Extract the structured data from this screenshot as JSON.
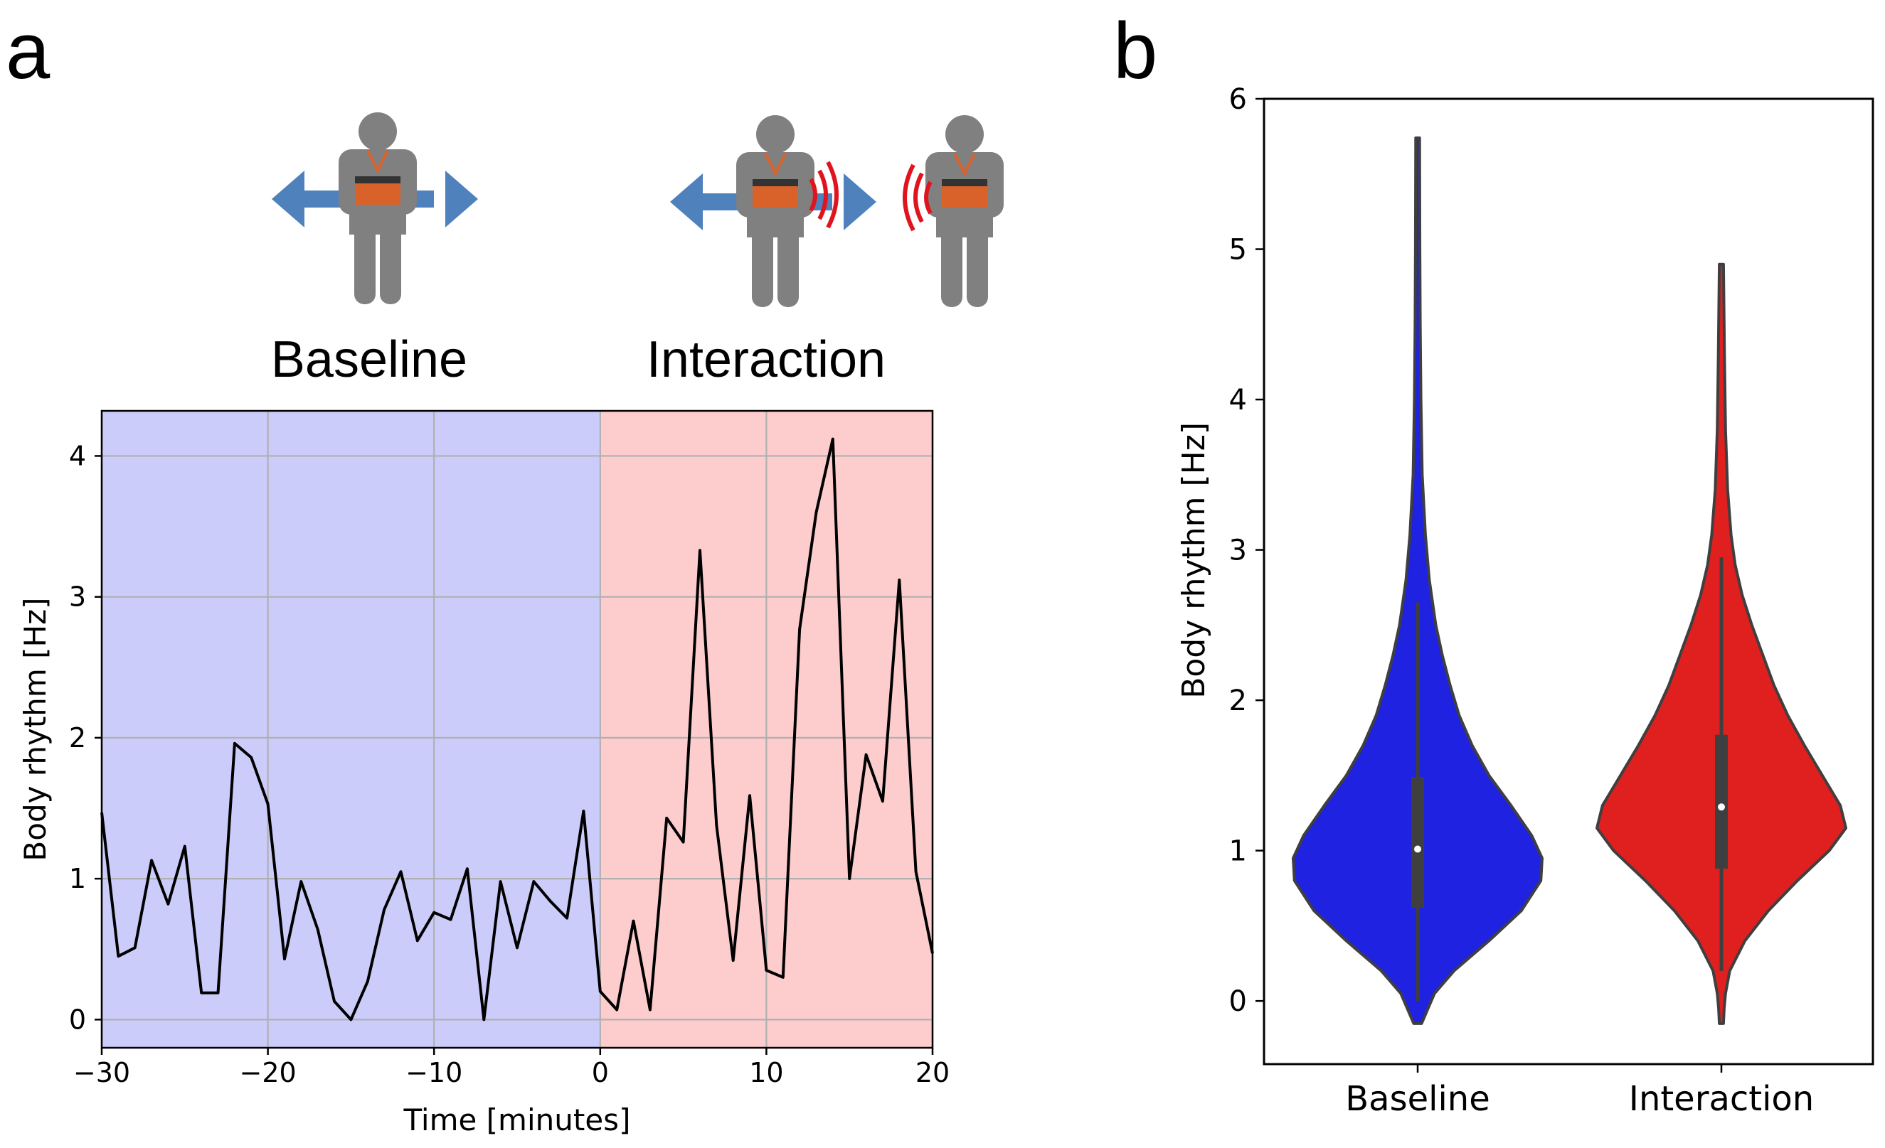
{
  "panels": {
    "a": {
      "letter": "a"
    },
    "b": {
      "letter": "b"
    }
  },
  "illustration": {
    "baseline_label": "Baseline",
    "interaction_label": "Interaction",
    "colors": {
      "person": "#808080",
      "arrow": "#4f81bd",
      "device": "#d9622b",
      "signal": "#e0141e"
    }
  },
  "chart_data": [
    {
      "id": "timeseries",
      "type": "line",
      "title": "",
      "xlabel": "Time [minutes]",
      "ylabel": "Body rhythm [Hz]",
      "xlim": [
        -30,
        20
      ],
      "ylim": [
        -0.2,
        4.32
      ],
      "xticks": [
        -30,
        -20,
        -10,
        0,
        10,
        20
      ],
      "xtick_labels": [
        "−30",
        "−20",
        "−10",
        "0",
        "10",
        "20"
      ],
      "yticks": [
        0,
        1,
        2,
        3,
        4
      ],
      "ytick_labels": [
        "0",
        "1",
        "2",
        "3",
        "4"
      ],
      "grid": true,
      "shaded_regions": [
        {
          "name": "Baseline",
          "x0": -30,
          "x1": 0,
          "color": "#ccccfb"
        },
        {
          "name": "Interaction",
          "x0": 0,
          "x1": 20,
          "color": "#fdcccc"
        }
      ],
      "line_color": "#000000",
      "series": [
        {
          "name": "Body rhythm",
          "x": [
            -30,
            -29,
            -28,
            -27,
            -26,
            -25,
            -24,
            -23,
            -22,
            -21,
            -20,
            -19,
            -18,
            -17,
            -16,
            -15,
            -14,
            -13,
            -12,
            -11,
            -10,
            -9,
            -8,
            -7,
            -6,
            -5,
            -4,
            -3,
            -2,
            -1,
            0,
            1,
            2,
            3,
            4,
            5,
            6,
            7,
            8,
            9,
            10,
            11,
            12,
            13,
            14,
            15,
            16,
            17,
            18,
            19,
            20
          ],
          "y": [
            1.47,
            0.45,
            0.51,
            1.13,
            0.82,
            1.23,
            0.19,
            0.19,
            1.96,
            1.86,
            1.53,
            0.43,
            0.98,
            0.64,
            0.13,
            0.0,
            0.27,
            0.78,
            1.05,
            0.56,
            0.76,
            0.71,
            1.07,
            0.0,
            0.98,
            0.51,
            0.98,
            0.84,
            0.72,
            1.48,
            0.2,
            0.07,
            0.7,
            0.07,
            1.43,
            1.26,
            3.33,
            1.38,
            0.42,
            1.59,
            0.35,
            0.3,
            2.77,
            3.6,
            4.12,
            1.0,
            1.88,
            1.55,
            3.12,
            1.05,
            0.47
          ]
        }
      ]
    },
    {
      "id": "violin",
      "type": "violin",
      "title": "",
      "xlabel": "",
      "ylabel": "Body rhythm [Hz]",
      "ylim": [
        -0.42,
        6.0
      ],
      "yticks": [
        0,
        1,
        2,
        3,
        4,
        5,
        6
      ],
      "ytick_labels": [
        "0",
        "1",
        "2",
        "3",
        "4",
        "5",
        "6"
      ],
      "categories": [
        "Baseline",
        "Interaction"
      ],
      "groups": [
        {
          "name": "Baseline",
          "color": "#1f22e0",
          "median": 1.01,
          "q1": 0.62,
          "q3": 1.49,
          "whisker_low": 0.0,
          "whisker_high": 2.65,
          "min": -0.15,
          "max": 5.74,
          "density": [
            [
              -0.15,
              0.03
            ],
            [
              -0.05,
              0.08
            ],
            [
              0.05,
              0.13
            ],
            [
              0.2,
              0.28
            ],
            [
              0.4,
              0.55
            ],
            [
              0.6,
              0.8
            ],
            [
              0.8,
              0.95
            ],
            [
              0.95,
              0.96
            ],
            [
              1.1,
              0.88
            ],
            [
              1.3,
              0.72
            ],
            [
              1.5,
              0.55
            ],
            [
              1.7,
              0.42
            ],
            [
              1.9,
              0.32
            ],
            [
              2.1,
              0.25
            ],
            [
              2.3,
              0.19
            ],
            [
              2.5,
              0.14
            ],
            [
              2.8,
              0.09
            ],
            [
              3.1,
              0.06
            ],
            [
              3.5,
              0.035
            ],
            [
              4.0,
              0.025
            ],
            [
              4.5,
              0.02
            ],
            [
              5.0,
              0.017
            ],
            [
              5.74,
              0.015
            ]
          ]
        },
        {
          "name": "Interaction",
          "color": "#e01f1f",
          "median": 1.29,
          "q1": 0.88,
          "q3": 1.77,
          "whisker_low": 0.2,
          "whisker_high": 2.95,
          "min": -0.15,
          "max": 4.9,
          "density": [
            [
              -0.15,
              0.015
            ],
            [
              -0.05,
              0.02
            ],
            [
              0.05,
              0.03
            ],
            [
              0.2,
              0.06
            ],
            [
              0.4,
              0.17
            ],
            [
              0.6,
              0.34
            ],
            [
              0.8,
              0.55
            ],
            [
              1.0,
              0.78
            ],
            [
              1.15,
              0.9
            ],
            [
              1.3,
              0.86
            ],
            [
              1.5,
              0.73
            ],
            [
              1.7,
              0.6
            ],
            [
              1.9,
              0.48
            ],
            [
              2.1,
              0.38
            ],
            [
              2.3,
              0.3
            ],
            [
              2.5,
              0.22
            ],
            [
              2.7,
              0.15
            ],
            [
              2.9,
              0.1
            ],
            [
              3.1,
              0.07
            ],
            [
              3.4,
              0.045
            ],
            [
              3.8,
              0.03
            ],
            [
              4.3,
              0.022
            ],
            [
              4.9,
              0.015
            ]
          ]
        }
      ]
    }
  ]
}
